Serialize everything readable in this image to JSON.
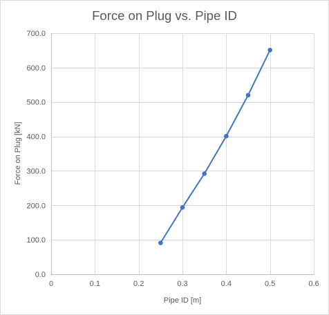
{
  "chart_data": {
    "type": "scatter",
    "title": "Force on Plug vs. Pipe ID",
    "xlabel": "Pipe ID [m]",
    "ylabel": "Force on Plug [kN]",
    "xlim": [
      0,
      0.6
    ],
    "ylim": [
      0,
      700
    ],
    "x_ticks": [
      0,
      0.1,
      0.2,
      0.3,
      0.4,
      0.5,
      0.6
    ],
    "x_tick_labels": [
      "0",
      "0.1",
      "0.2",
      "0.3",
      "0.4",
      "0.5",
      "0.6"
    ],
    "y_ticks": [
      0,
      100,
      200,
      300,
      400,
      500,
      600,
      700
    ],
    "y_tick_labels": [
      "0.0",
      "100.0",
      "200.0",
      "300.0",
      "400.0",
      "500.0",
      "600.0",
      "700.0"
    ],
    "grid": true,
    "legend": "none",
    "lines_connect_points": true,
    "series": [
      {
        "color": "#4472c4",
        "x": [
          0.25,
          0.3,
          0.35,
          0.4,
          0.45,
          0.5
        ],
        "y": [
          91,
          194,
          292,
          401,
          520,
          651
        ]
      }
    ]
  }
}
